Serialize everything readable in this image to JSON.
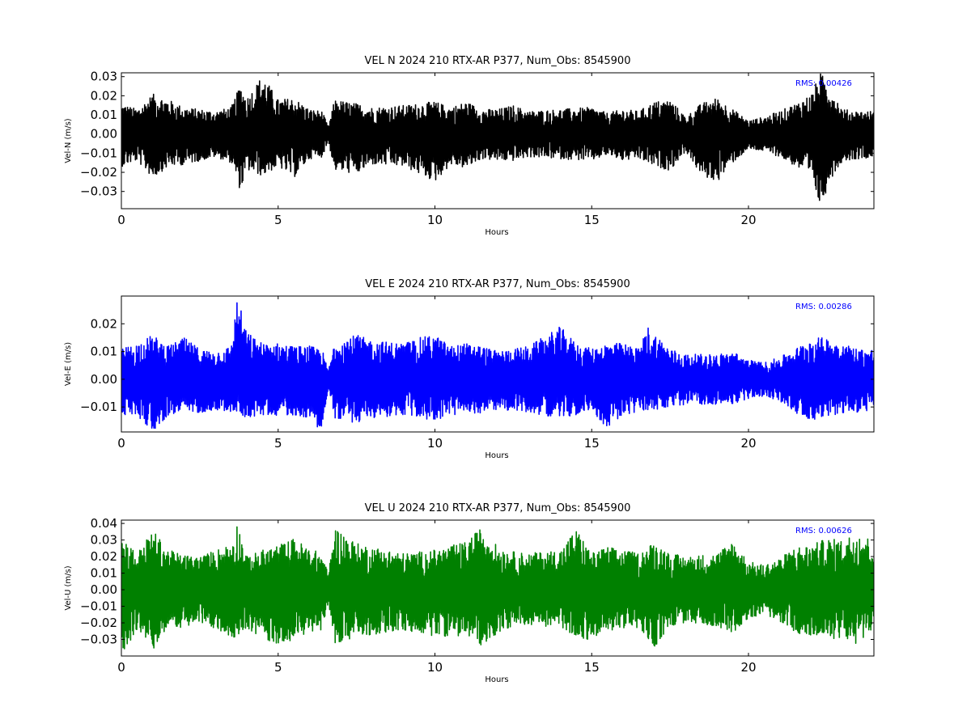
{
  "chart_data": [
    {
      "type": "line",
      "title": "VEL N 2024 210 RTX-AR  P377, Num_Obs: 8545900",
      "xlabel": "Hours",
      "ylabel": "Vel-N (m/s)",
      "xlim": [
        0,
        24
      ],
      "ylim": [
        -0.039,
        0.032
      ],
      "xticks": [
        0,
        5,
        10,
        15,
        20
      ],
      "xtick_labels": [
        "0",
        "5",
        "10",
        "15",
        "20"
      ],
      "yticks": [
        -0.03,
        -0.02,
        -0.01,
        0.0,
        0.01,
        0.02,
        0.03
      ],
      "ytick_labels": [
        "−0.03",
        "−0.02",
        "−0.01",
        "0.00",
        "0.01",
        "0.02",
        "0.03"
      ],
      "grid": false,
      "annotation": "RMS:  0.00426",
      "color": "#000000",
      "series": [
        {
          "envelope": {
            "hours": [
              0,
              0.5,
              1,
              1.5,
              2,
              2.5,
              3,
              3.5,
              3.8,
              4,
              4.5,
              5,
              5.5,
              6,
              6.4,
              6.6,
              6.8,
              7.5,
              8,
              9,
              10,
              10.5,
              11,
              11.5,
              12,
              12.5,
              13,
              14,
              15,
              15.5,
              16,
              16.5,
              17,
              17.5,
              18,
              18.5,
              19,
              19.5,
              20,
              20.5,
              21,
              21.5,
              22,
              22.3,
              22.6,
              23,
              23.5,
              24
            ],
            "upper": [
              0.016,
              0.013,
              0.021,
              0.018,
              0.014,
              0.013,
              0.012,
              0.014,
              0.026,
              0.019,
              0.031,
              0.018,
              0.019,
              0.013,
              0.012,
              0.004,
              0.018,
              0.016,
              0.014,
              0.015,
              0.017,
              0.014,
              0.017,
              0.013,
              0.013,
              0.015,
              0.012,
              0.013,
              0.014,
              0.011,
              0.013,
              0.012,
              0.017,
              0.018,
              0.009,
              0.016,
              0.019,
              0.013,
              0.007,
              0.009,
              0.012,
              0.016,
              0.021,
              0.032,
              0.025,
              0.013,
              0.012,
              0.012
            ],
            "lower": [
              -0.017,
              -0.014,
              -0.023,
              -0.017,
              -0.016,
              -0.014,
              -0.012,
              -0.015,
              -0.03,
              -0.019,
              -0.022,
              -0.017,
              -0.023,
              -0.013,
              -0.012,
              -0.004,
              -0.019,
              -0.021,
              -0.016,
              -0.017,
              -0.025,
              -0.016,
              -0.018,
              -0.013,
              -0.014,
              -0.014,
              -0.012,
              -0.013,
              -0.014,
              -0.011,
              -0.014,
              -0.013,
              -0.017,
              -0.019,
              -0.009,
              -0.022,
              -0.025,
              -0.015,
              -0.008,
              -0.009,
              -0.012,
              -0.017,
              -0.023,
              -0.039,
              -0.024,
              -0.014,
              -0.013,
              -0.012
            ]
          }
        }
      ]
    },
    {
      "type": "line",
      "title": "VEL E 2024 210 RTX-AR  P377, Num_Obs: 8545900",
      "xlabel": "Hours",
      "ylabel": "Vel-E (m/s)",
      "xlim": [
        0,
        24
      ],
      "ylim": [
        -0.019,
        0.03
      ],
      "xticks": [
        0,
        5,
        10,
        15,
        20
      ],
      "xtick_labels": [
        "0",
        "5",
        "10",
        "15",
        "20"
      ],
      "yticks": [
        -0.01,
        0.0,
        0.01,
        0.02
      ],
      "ytick_labels": [
        "−0.01",
        "0.00",
        "0.01",
        "0.02"
      ],
      "grid": false,
      "annotation": "RMS:  0.00286",
      "color": "#0000ff",
      "series": [
        {
          "envelope": {
            "hours": [
              0,
              0.5,
              1,
              1.5,
              2,
              2.5,
              3,
              3.5,
              3.7,
              4,
              4.5,
              5,
              5.5,
              6,
              6.4,
              6.6,
              6.8,
              7.5,
              8,
              9,
              9.5,
              10,
              10.5,
              11,
              11.5,
              12,
              13,
              14,
              14.5,
              15,
              15.5,
              16,
              16.5,
              16.8,
              17.5,
              18,
              19,
              19.5,
              20,
              20.5,
              21,
              21.5,
              22,
              22.5,
              23,
              23.5,
              24
            ],
            "upper": [
              0.011,
              0.013,
              0.016,
              0.012,
              0.015,
              0.011,
              0.01,
              0.012,
              0.03,
              0.017,
              0.013,
              0.013,
              0.012,
              0.012,
              0.011,
              0.003,
              0.014,
              0.016,
              0.014,
              0.013,
              0.015,
              0.016,
              0.012,
              0.013,
              0.012,
              0.01,
              0.012,
              0.019,
              0.013,
              0.011,
              0.013,
              0.013,
              0.011,
              0.019,
              0.011,
              0.009,
              0.009,
              0.01,
              0.007,
              0.006,
              0.008,
              0.011,
              0.015,
              0.015,
              0.013,
              0.011,
              0.011
            ],
            "lower": [
              -0.013,
              -0.013,
              -0.019,
              -0.013,
              -0.012,
              -0.012,
              -0.011,
              -0.012,
              -0.012,
              -0.014,
              -0.013,
              -0.013,
              -0.013,
              -0.014,
              -0.019,
              -0.004,
              -0.014,
              -0.016,
              -0.014,
              -0.013,
              -0.014,
              -0.015,
              -0.013,
              -0.013,
              -0.012,
              -0.011,
              -0.012,
              -0.014,
              -0.013,
              -0.011,
              -0.018,
              -0.013,
              -0.012,
              -0.011,
              -0.011,
              -0.009,
              -0.009,
              -0.009,
              -0.007,
              -0.006,
              -0.008,
              -0.012,
              -0.015,
              -0.013,
              -0.013,
              -0.012,
              -0.011
            ]
          }
        }
      ]
    },
    {
      "type": "line",
      "title": "VEL U 2024 210 RTX-AR  P377, Num_Obs: 8545900",
      "xlabel": "Hours",
      "ylabel": "Vel-U (m/s)",
      "xlim": [
        0,
        24
      ],
      "ylim": [
        -0.04,
        0.042
      ],
      "xticks": [
        0,
        5,
        10,
        15,
        20
      ],
      "xtick_labels": [
        "0",
        "5",
        "10",
        "15",
        "20"
      ],
      "yticks": [
        -0.03,
        -0.02,
        -0.01,
        0.0,
        0.01,
        0.02,
        0.03,
        0.04
      ],
      "ytick_labels": [
        "−0.03",
        "−0.02",
        "−0.01",
        "0.00",
        "0.01",
        "0.02",
        "0.03",
        "0.04"
      ],
      "grid": false,
      "annotation": "RMS:  0.00626",
      "color": "#008000",
      "series": [
        {
          "envelope": {
            "hours": [
              0,
              0.5,
              1,
              1.5,
              2,
              2.5,
              3,
              3.5,
              3.7,
              4,
              4.5,
              5,
              5.5,
              6,
              6.4,
              6.6,
              6.8,
              7.5,
              8,
              9,
              10,
              11,
              11.5,
              12,
              12.5,
              13,
              14,
              14.5,
              15,
              15.5,
              16,
              16.5,
              17,
              17.5,
              18,
              19,
              19.5,
              20,
              20.5,
              21,
              21.5,
              22,
              22.5,
              23,
              23.5,
              24
            ],
            "upper": [
              0.033,
              0.022,
              0.036,
              0.024,
              0.021,
              0.02,
              0.024,
              0.028,
              0.041,
              0.02,
              0.024,
              0.027,
              0.031,
              0.025,
              0.022,
              0.009,
              0.038,
              0.028,
              0.026,
              0.022,
              0.024,
              0.029,
              0.038,
              0.026,
              0.023,
              0.022,
              0.024,
              0.037,
              0.022,
              0.026,
              0.024,
              0.022,
              0.029,
              0.022,
              0.02,
              0.022,
              0.03,
              0.017,
              0.015,
              0.019,
              0.026,
              0.027,
              0.031,
              0.03,
              0.036,
              0.029
            ],
            "lower": [
              -0.04,
              -0.024,
              -0.037,
              -0.022,
              -0.023,
              -0.02,
              -0.024,
              -0.029,
              -0.028,
              -0.023,
              -0.03,
              -0.033,
              -0.03,
              -0.026,
              -0.024,
              -0.009,
              -0.032,
              -0.03,
              -0.027,
              -0.025,
              -0.028,
              -0.028,
              -0.034,
              -0.026,
              -0.022,
              -0.021,
              -0.023,
              -0.028,
              -0.031,
              -0.025,
              -0.023,
              -0.024,
              -0.035,
              -0.022,
              -0.02,
              -0.022,
              -0.026,
              -0.017,
              -0.015,
              -0.019,
              -0.026,
              -0.029,
              -0.03,
              -0.029,
              -0.034,
              -0.022
            ]
          }
        }
      ]
    }
  ]
}
